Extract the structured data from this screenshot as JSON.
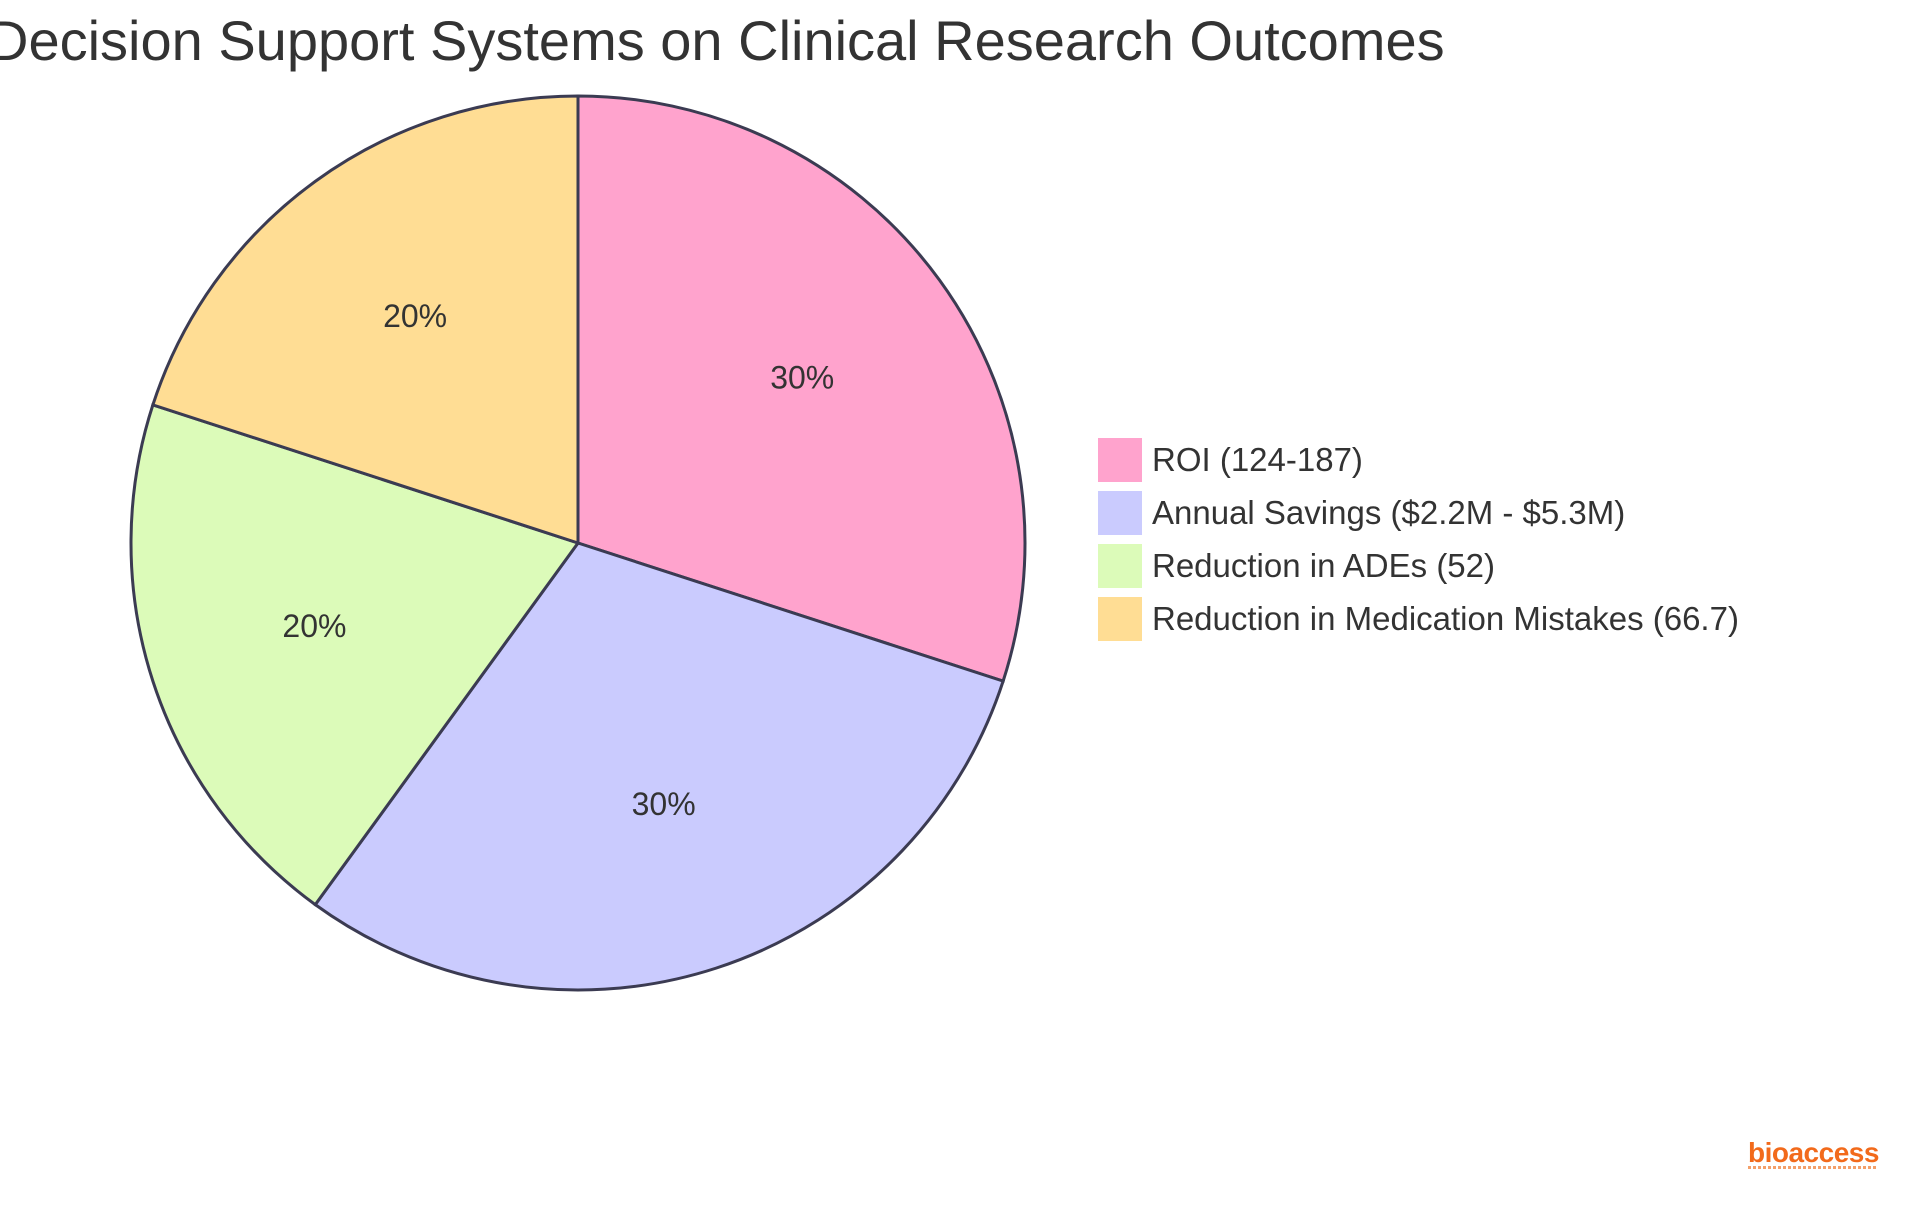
{
  "title": "Decision Support Systems on Clinical Research Outcomes",
  "chart_data": {
    "type": "pie",
    "title": "Decision Support Systems on Clinical Research Outcomes",
    "categories": [
      "ROI (124-187)",
      "Annual Savings ($2.2M - $5.3M)",
      "Reduction in ADEs (52)",
      "Reduction in Medication Mistakes (66.7)"
    ],
    "values": [
      30,
      30,
      20,
      20
    ],
    "value_labels": [
      "30%",
      "30%",
      "20%",
      "20%"
    ],
    "colors": [
      "#ffa3cd",
      "#cacbfe",
      "#dcfbb9",
      "#ffdd94"
    ],
    "legend_position": "right"
  },
  "brand": {
    "name": "bioaccess",
    "color": "#f26a1b"
  }
}
